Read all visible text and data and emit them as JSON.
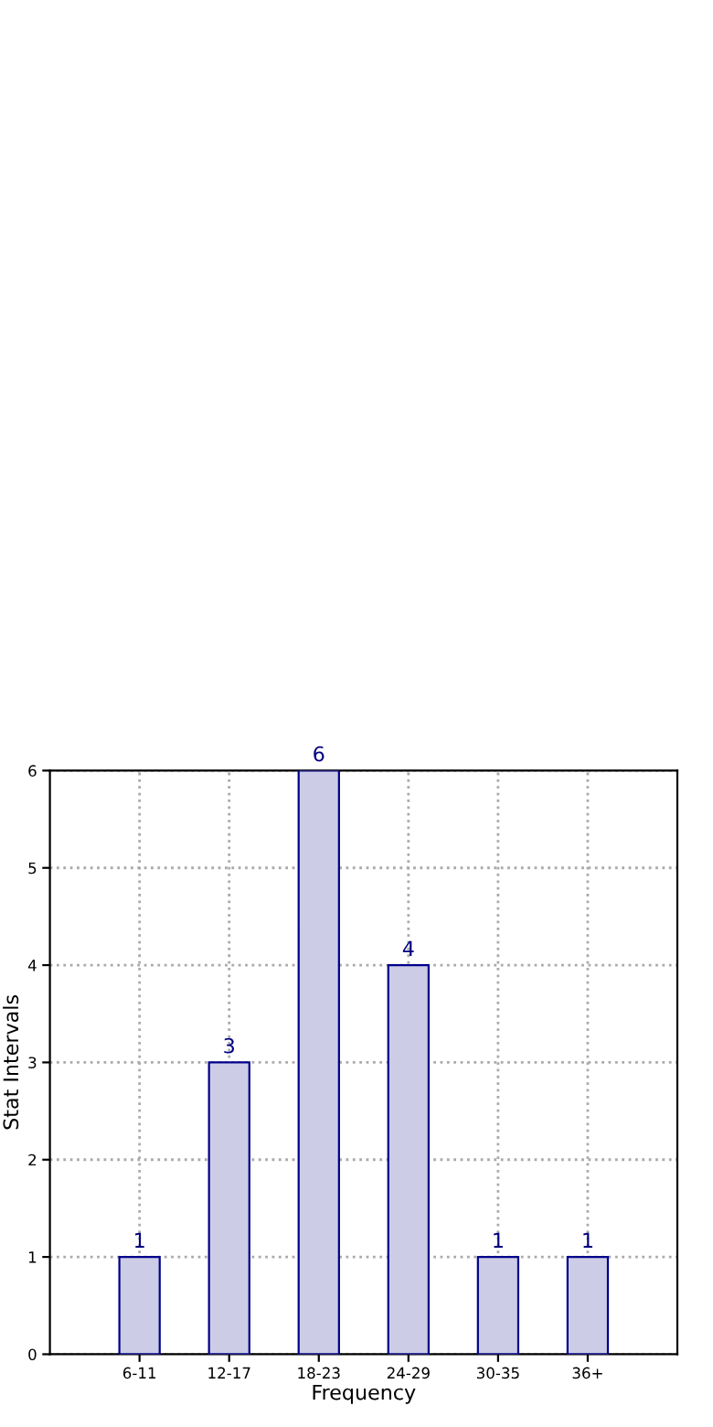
{
  "chart_data": {
    "type": "bar",
    "xlabel": "Frequency",
    "ylabel": "Stat Intervals",
    "categories": [
      "6-11",
      "12-17",
      "18-23",
      "24-29",
      "30-35",
      "36+"
    ],
    "values": [
      1,
      3,
      6,
      4,
      1,
      1
    ],
    "color": "#cccce6",
    "ylim": [
      0,
      6
    ],
    "yticks": [
      0,
      1,
      2,
      3,
      4,
      5,
      6
    ],
    "grid": true,
    "data_labels": true
  }
}
